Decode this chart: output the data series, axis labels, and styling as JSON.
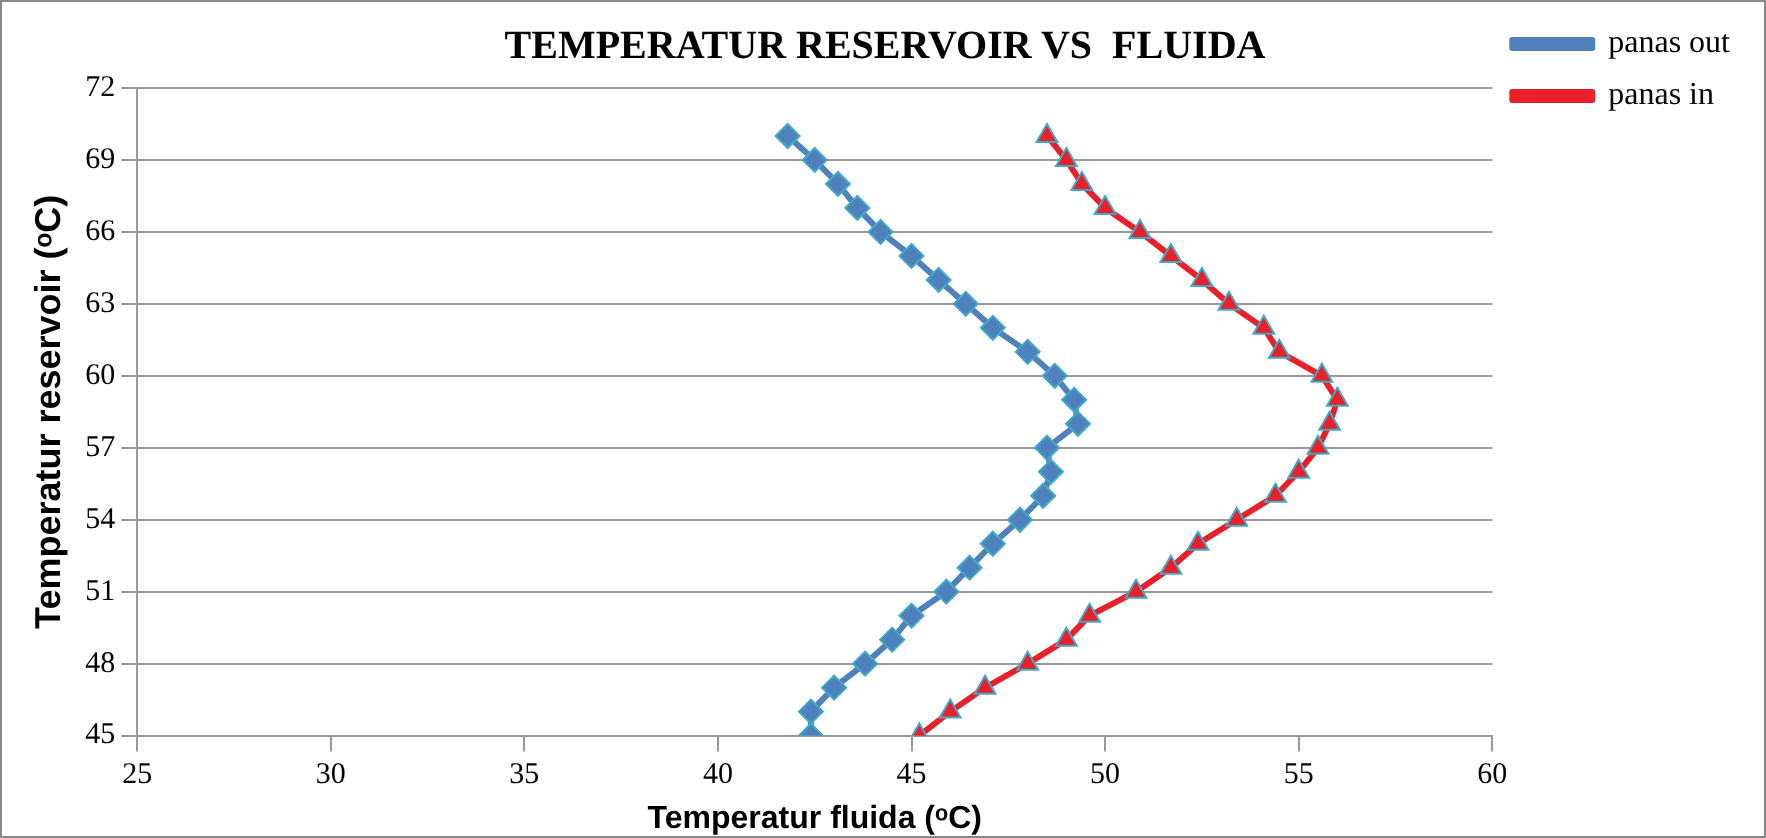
{
  "chart_data": {
    "type": "line",
    "title": "TEMPERATUR RESERVOIR VS  FLUIDA",
    "xlabel": "Temperatur fluida (ᵒC)",
    "ylabel": "Temperatur reservoir (ᵒC)",
    "xlim": [
      25,
      60
    ],
    "xticks": [
      25,
      30,
      35,
      40,
      45,
      50,
      55,
      60
    ],
    "ylim": [
      45,
      72
    ],
    "yticks": [
      45,
      48,
      51,
      54,
      57,
      60,
      63,
      66,
      69,
      72
    ],
    "grid": "y",
    "legend": "right",
    "series": [
      {
        "name": "panas out",
        "color": "#4f81bd",
        "marker": "diamond",
        "x": [
          42.4,
          42.4,
          43.0,
          43.8,
          44.5,
          45.0,
          45.9,
          46.5,
          47.1,
          47.8,
          48.4,
          48.6,
          48.5,
          49.3,
          49.2,
          48.7,
          48.0,
          47.1,
          46.4,
          45.7,
          45.0,
          44.2,
          43.6,
          43.1,
          42.5,
          41.8
        ],
        "values": [
          45,
          46,
          47,
          48,
          49,
          50,
          51,
          52,
          53,
          54,
          55,
          56,
          57,
          58,
          59,
          60,
          61,
          62,
          63,
          64,
          65,
          66,
          67,
          68,
          69,
          70
        ]
      },
      {
        "name": "panas in",
        "color": "#e8202a",
        "marker": "triangle",
        "x": [
          45.2,
          46.0,
          46.9,
          48.0,
          49.0,
          49.6,
          50.8,
          51.7,
          52.4,
          53.4,
          54.4,
          55.0,
          55.5,
          55.8,
          56.0,
          55.6,
          54.5,
          54.1,
          53.2,
          52.5,
          51.7,
          50.9,
          50.0,
          49.4,
          49.0,
          48.5
        ],
        "values": [
          45,
          46,
          47,
          48,
          49,
          50,
          51,
          52,
          53,
          54,
          55,
          56,
          57,
          58,
          59,
          60,
          61,
          62,
          63,
          64,
          65,
          66,
          67,
          68,
          69,
          70
        ]
      }
    ]
  }
}
